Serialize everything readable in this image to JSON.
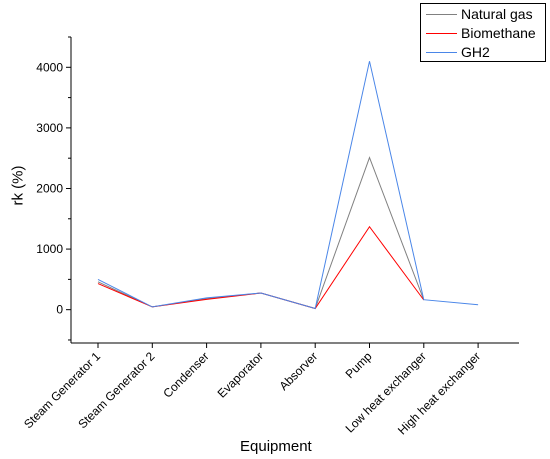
{
  "chart_data": {
    "type": "line",
    "xlabel": "Equipment",
    "ylabel": "rk (%)",
    "categories": [
      "Steam Generator 1",
      "Steam Generator 2",
      "Condenser",
      "Evaporator",
      "Absorver",
      "Pump",
      "Low heat exchanger",
      "High heat exchanger"
    ],
    "series": [
      {
        "name": "Natural gas",
        "color": "#808080",
        "values": [
          460,
          45,
          180,
          275,
          20,
          2510,
          160,
          null
        ]
      },
      {
        "name": "Biomethane",
        "color": "#ff0000",
        "values": [
          430,
          45,
          170,
          275,
          20,
          1370,
          160,
          null
        ]
      },
      {
        "name": "GH2",
        "color": "#4a86e8",
        "values": [
          500,
          45,
          195,
          275,
          20,
          4100,
          165,
          80
        ]
      }
    ],
    "yticks": [
      0,
      1000,
      2000,
      3000,
      4000
    ],
    "ylim": [
      -550,
      4500
    ],
    "legend_position": "top-right",
    "grid": false
  }
}
